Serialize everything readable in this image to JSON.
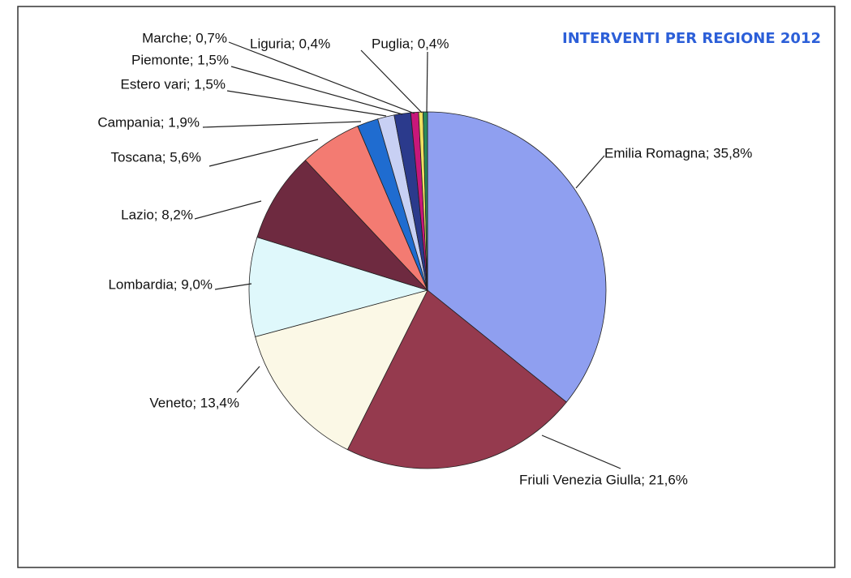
{
  "chart_data": {
    "type": "pie",
    "title": "INTERVENTI PER REGIONE 2012",
    "values": [
      35.8,
      21.6,
      13.4,
      9.0,
      8.2,
      5.6,
      1.9,
      1.5,
      1.5,
      0.7,
      0.4,
      0.4
    ],
    "value_labels": [
      "Emilia Romagna; 35,8%",
      "Friuli Venezia Giulla; 21,6%",
      "Veneto; 13,4%",
      "Lombardia; 9,0%",
      "Lazio; 8,2%",
      "Toscana; 5,6%",
      "Campania; 1,9%",
      "Estero vari; 1,5%",
      "Piemonte; 1,5%",
      "Marche; 0,7%",
      "Liguria; 0,4%",
      "Puglia; 0,4%"
    ],
    "colors": [
      "#8f9ff0",
      "#953a4e",
      "#fbf8e6",
      "#dff8fb",
      "#6e2a40",
      "#f37b72",
      "#1f6cd0",
      "#c8d0f4",
      "#2b3a8c",
      "#c8177a",
      "#f0e060",
      "#2a8a5a"
    ]
  }
}
